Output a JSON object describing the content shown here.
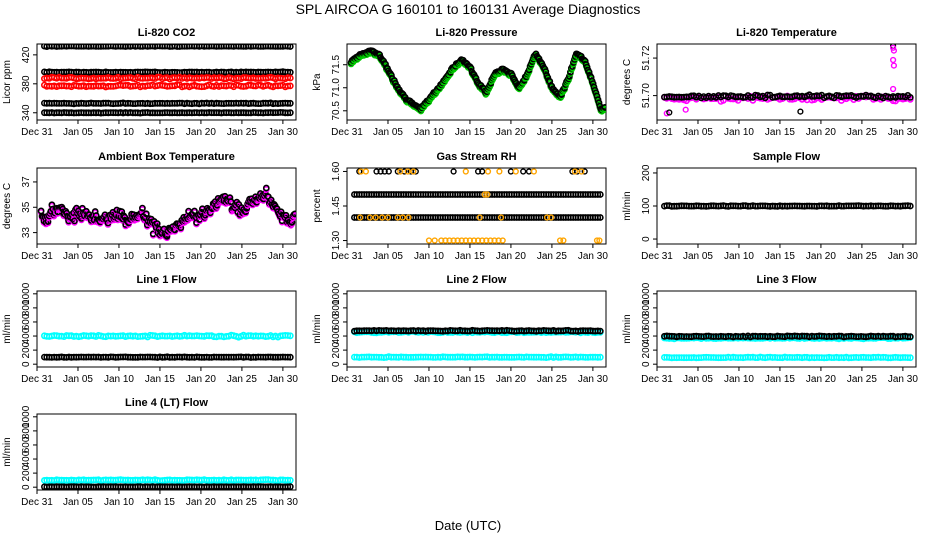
{
  "figure": {
    "title": "SPL   AIRCOA G   160101 to 160131   Average Diagnostics",
    "xlabel": "Date (UTC)",
    "x_tick_labels": [
      "Dec 31",
      "Jan 05",
      "Jan 10",
      "Jan 15",
      "Jan 20",
      "Jan 25",
      "Jan 30"
    ]
  },
  "colors": {
    "black": "#000000",
    "red": "#ff0000",
    "magenta": "#ff00ff",
    "green": "#00cc00",
    "orange": "#ffa500",
    "cyan": "#00ffff",
    "axis": "#000000"
  },
  "chart_data": [
    {
      "id": "co2",
      "type": "scatter",
      "title": "Li-820 CO2",
      "ylabel": "Licor ppm",
      "ylim": [
        330,
        435
      ],
      "yticks": [
        340,
        380,
        420
      ],
      "series": [
        {
          "name": "level-1",
          "color": "black",
          "kind": "band",
          "level": 432,
          "noise": 0.6
        },
        {
          "name": "level-2",
          "color": "black",
          "kind": "band",
          "level": 396,
          "noise": 0.8
        },
        {
          "name": "level-3",
          "color": "red",
          "kind": "band",
          "level": 388,
          "noise": 2.0
        },
        {
          "name": "level-4",
          "color": "red",
          "kind": "band",
          "level": 377,
          "noise": 2.0
        },
        {
          "name": "level-5",
          "color": "black",
          "kind": "band",
          "level": 353,
          "noise": 0.8
        },
        {
          "name": "level-6",
          "color": "black",
          "kind": "band",
          "level": 340,
          "noise": 0.6
        }
      ]
    },
    {
      "id": "pressure",
      "type": "line",
      "title": "Li-820 Pressure",
      "ylabel": "kPa",
      "ylim": [
        70.3,
        71.95
      ],
      "yticks": [
        70.5,
        71.0,
        71.5
      ],
      "series": [
        {
          "name": "pressure",
          "color": "black",
          "shadow": "green",
          "kind": "curve",
          "x": [
            0.5,
            1,
            2,
            3,
            4,
            5,
            6,
            7,
            8,
            9,
            10,
            11,
            12,
            13,
            14,
            15,
            16,
            17,
            18,
            19,
            20,
            21,
            22,
            23,
            24,
            25,
            26,
            27,
            28,
            29,
            30,
            31,
            31.5
          ],
          "y": [
            71.55,
            71.65,
            71.75,
            71.8,
            71.7,
            71.4,
            71.05,
            70.8,
            70.65,
            70.55,
            70.75,
            70.95,
            71.2,
            71.45,
            71.6,
            71.45,
            71.1,
            70.9,
            71.3,
            71.4,
            71.3,
            71.0,
            71.3,
            71.75,
            71.45,
            71.0,
            70.8,
            71.2,
            71.75,
            71.6,
            71.1,
            70.5,
            70.6
          ],
          "noise": 0.04
        }
      ]
    },
    {
      "id": "licor_temp",
      "type": "scatter",
      "title": "Li-820 Temperature",
      "ylabel": "degrees C",
      "ylim": [
        51.687,
        51.7275
      ],
      "yticks": [
        51.7,
        51.72
      ],
      "series": [
        {
          "name": "temp-magenta",
          "color": "magenta",
          "kind": "band",
          "level": 51.6985,
          "noise": 0.002
        },
        {
          "name": "temp-black",
          "color": "black",
          "kind": "band",
          "level": 51.6995,
          "noise": 0.0012
        }
      ],
      "outliers": [
        {
          "x": 28.8,
          "y": 51.7265,
          "color": "black"
        },
        {
          "x": 28.8,
          "y": 51.7255,
          "color": "magenta"
        },
        {
          "x": 28.9,
          "y": 51.724,
          "color": "magenta"
        },
        {
          "x": 28.8,
          "y": 51.719,
          "color": "magenta"
        },
        {
          "x": 28.9,
          "y": 51.716,
          "color": "magenta"
        },
        {
          "x": 28.8,
          "y": 51.7035,
          "color": "magenta"
        },
        {
          "x": 1.2,
          "y": 51.6905,
          "color": "magenta"
        },
        {
          "x": 1.5,
          "y": 51.691,
          "color": "black"
        },
        {
          "x": 3.5,
          "y": 51.6925,
          "color": "magenta"
        },
        {
          "x": 17.5,
          "y": 51.6915,
          "color": "black"
        }
      ]
    },
    {
      "id": "ambient_temp",
      "type": "line",
      "title": "Ambient Box Temperature",
      "ylabel": "degrees C",
      "ylim": [
        32.1,
        38.1
      ],
      "yticks": [
        33,
        35,
        37
      ],
      "series": [
        {
          "name": "ambient",
          "color": "black",
          "shadow": "magenta",
          "kind": "curve",
          "x": [
            0.5,
            1,
            2,
            3,
            4,
            5,
            6,
            7,
            8,
            9,
            10,
            11,
            12,
            13,
            14,
            15,
            16,
            17,
            18,
            19,
            20,
            21,
            22,
            23,
            24,
            25,
            26,
            27,
            28,
            29,
            30,
            31,
            31.5
          ],
          "y": [
            34.5,
            34.0,
            34.8,
            34.6,
            34.4,
            34.5,
            34.3,
            34.2,
            34.0,
            34.3,
            34.4,
            34.0,
            34.2,
            34.5,
            33.6,
            33.1,
            33.0,
            33.4,
            34.0,
            34.3,
            34.2,
            34.9,
            35.3,
            35.6,
            35.2,
            34.8,
            35.4,
            35.8,
            36.0,
            35.0,
            34.4,
            34.0,
            34.6
          ],
          "noise": 0.7
        }
      ]
    },
    {
      "id": "rh",
      "type": "scatter",
      "title": "Gas Stream RH",
      "ylabel": "percent",
      "ylim": [
        1.285,
        1.615
      ],
      "yticks": [
        1.3,
        1.45,
        1.6
      ],
      "series": [
        {
          "name": "rh-1.50",
          "color": "black",
          "kind": "band",
          "level": 1.5,
          "noise": 0.0
        },
        {
          "name": "rh-1.40",
          "color": "black",
          "kind": "band",
          "level": 1.4,
          "noise": 0.0
        }
      ],
      "sparse": [
        {
          "color": "black",
          "y": 1.6,
          "xs": [
            1.5,
            3.6,
            4.1,
            4.6,
            5.1,
            6.2,
            7.0,
            7.8,
            8.4,
            13.0,
            16.0,
            16.5,
            20.0,
            21.5,
            22.2,
            27.5,
            28.1,
            29.0
          ]
        },
        {
          "color": "orange",
          "y": 1.6,
          "xs": [
            1.7,
            2.3,
            6.5,
            7.4,
            8.1,
            14.5,
            17.2,
            18.6,
            20.6,
            22.8,
            27.8,
            28.6
          ]
        },
        {
          "color": "orange",
          "y": 1.4,
          "xs": [
            1.6,
            2.8,
            3.5,
            4.3,
            5.0,
            6.2,
            6.8,
            7.5,
            16.2,
            18.8,
            24.4,
            24.9
          ]
        },
        {
          "color": "orange",
          "y": 1.3,
          "xs": [
            10.0,
            10.7,
            11.5,
            12.0,
            12.5,
            13.0,
            13.5,
            14.0,
            14.5,
            15.0,
            15.5,
            16.0,
            16.5,
            17.0,
            17.5,
            18.0,
            18.5,
            19.0,
            26.0,
            26.4,
            30.5,
            30.8
          ]
        },
        {
          "color": "orange",
          "y": 1.5,
          "xs": [
            16.8,
            17.1
          ]
        }
      ]
    },
    {
      "id": "sample_flow",
      "type": "scatter",
      "title": "Sample Flow",
      "ylabel": "ml/min",
      "ylim": [
        -15,
        215
      ],
      "yticks": [
        0,
        100,
        200
      ],
      "series": [
        {
          "name": "sample-flow",
          "color": "black",
          "kind": "band",
          "level": 100,
          "noise": 1.5
        }
      ]
    },
    {
      "id": "line1",
      "type": "scatter",
      "title": "Line 1 Flow",
      "ylabel": "ml/min",
      "ylim": [
        -40,
        1040
      ],
      "yticks": [
        0,
        200,
        400,
        600,
        800,
        1000
      ],
      "series": [
        {
          "name": "cyan",
          "color": "cyan",
          "kind": "band",
          "level": 400,
          "noise": 18
        },
        {
          "name": "black",
          "color": "black",
          "kind": "band",
          "level": 100,
          "noise": 6
        }
      ]
    },
    {
      "id": "line2",
      "type": "scatter",
      "title": "Line 2 Flow",
      "ylabel": "ml/min",
      "ylim": [
        -40,
        1040
      ],
      "yticks": [
        0,
        200,
        400,
        600,
        800,
        1000
      ],
      "series": [
        {
          "name": "cyan-upper",
          "color": "cyan",
          "kind": "band",
          "level": 455,
          "noise": 14
        },
        {
          "name": "black",
          "color": "black",
          "kind": "band",
          "level": 475,
          "noise": 10
        },
        {
          "name": "cyan-lower",
          "color": "cyan",
          "kind": "band",
          "level": 100,
          "noise": 8
        }
      ]
    },
    {
      "id": "line3",
      "type": "scatter",
      "title": "Line 3 Flow",
      "ylabel": "ml/min",
      "ylim": [
        -40,
        1040
      ],
      "yticks": [
        0,
        200,
        400,
        600,
        800,
        1000
      ],
      "series": [
        {
          "name": "cyan-upper",
          "color": "cyan",
          "kind": "band",
          "level": 370,
          "noise": 14
        },
        {
          "name": "black",
          "color": "black",
          "kind": "band",
          "level": 395,
          "noise": 10
        },
        {
          "name": "cyan-lower",
          "color": "cyan",
          "kind": "band",
          "level": 95,
          "noise": 8
        }
      ]
    },
    {
      "id": "line4",
      "type": "scatter",
      "title": "Line 4 (LT) Flow",
      "ylabel": "ml/min",
      "ylim": [
        -40,
        1040
      ],
      "yticks": [
        0,
        200,
        400,
        600,
        800,
        1000
      ],
      "series": [
        {
          "name": "cyan",
          "color": "cyan",
          "kind": "band",
          "level": 100,
          "noise": 10
        },
        {
          "name": "black",
          "color": "black",
          "kind": "band",
          "level": 5,
          "noise": 3
        }
      ]
    }
  ]
}
